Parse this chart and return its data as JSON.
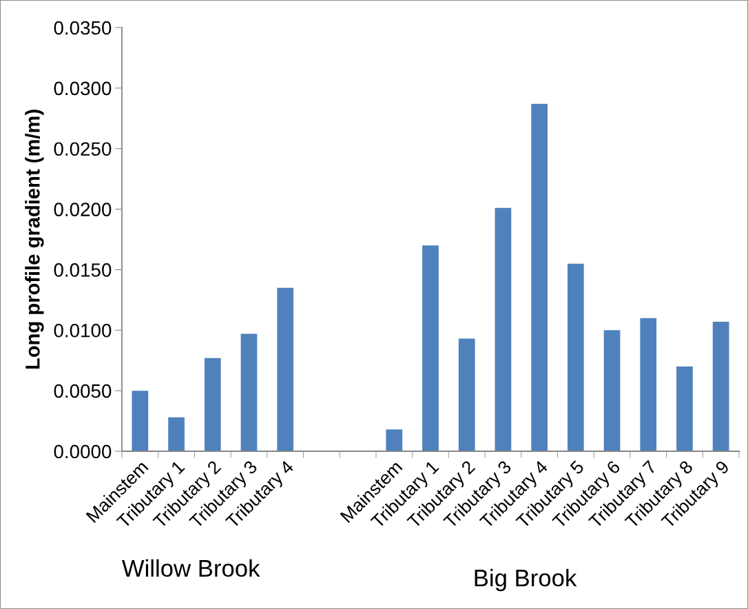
{
  "chart_data": {
    "type": "bar",
    "ylabel": "Long profile gradient (m/m)",
    "categories": [
      "Mainstem",
      "Tributary 1",
      "Tributary 2",
      "Tributary 3",
      "Tributary 4",
      null,
      null,
      "Mainstem",
      "Tributary 1",
      "Tributary 2",
      "Tributary 3",
      "Tributary 4",
      "Tributary 5",
      "Tributary 6",
      "Tributary 7",
      "Tributary 8",
      "Tributary 9"
    ],
    "values": [
      0.005,
      0.0028,
      0.0077,
      0.0097,
      0.0135,
      null,
      null,
      0.0018,
      0.017,
      0.0093,
      0.0201,
      0.0287,
      0.0155,
      0.01,
      0.011,
      0.007,
      0.0107
    ],
    "color": "#4f81bd",
    "ylim": [
      0,
      0.035
    ],
    "yticks": [
      {
        "value": 0,
        "label": "0.0000"
      },
      {
        "value": 0.005,
        "label": "0.0050"
      },
      {
        "value": 0.01,
        "label": "0.0100"
      },
      {
        "value": 0.015,
        "label": "0.0150"
      },
      {
        "value": 0.02,
        "label": "0.0200"
      },
      {
        "value": 0.025,
        "label": "0.0250"
      },
      {
        "value": 0.03,
        "label": "0.0300"
      },
      {
        "value": 0.035,
        "label": "0.0350"
      }
    ],
    "annotations": [
      "Willow Brook",
      "Big Brook"
    ],
    "grid": false
  }
}
